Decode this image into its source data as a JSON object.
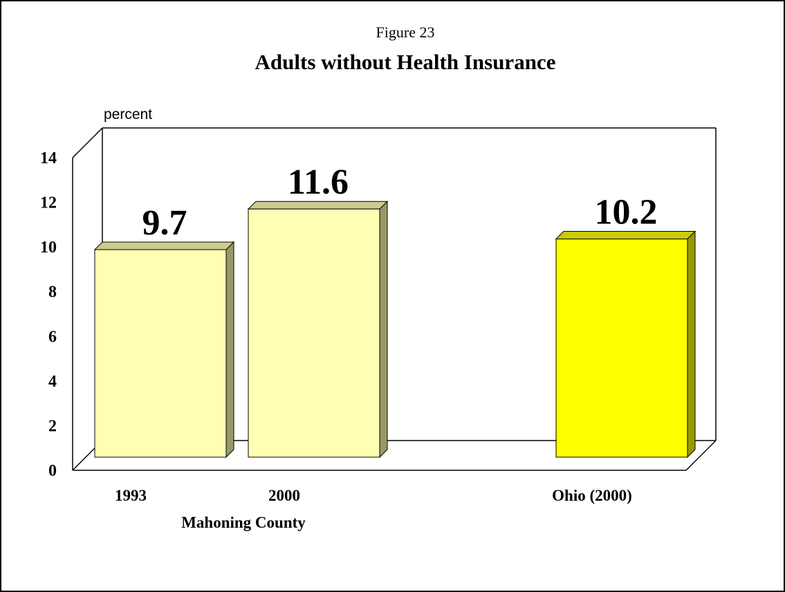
{
  "chart_data": {
    "type": "bar",
    "subtitle": "Figure 23",
    "title": "Adults without Health Insurance",
    "ylabel": "percent",
    "ylim": [
      0,
      14
    ],
    "yticks": [
      0,
      2,
      4,
      6,
      8,
      10,
      12,
      14
    ],
    "categories": [
      "1993",
      "2000",
      "Ohio (2000)"
    ],
    "values": [
      9.7,
      11.6,
      10.2
    ],
    "value_labels": [
      "9.7",
      "11.6",
      "10.2"
    ],
    "group_label": "Mahoning County",
    "grid": false,
    "three_d": true,
    "colors": {
      "bar_face": [
        "#ffffb3",
        "#ffffb3",
        "#ffff00"
      ],
      "bar_top": [
        "#cccc8f",
        "#cccc8f",
        "#cccc00"
      ],
      "bar_side": [
        "#999966",
        "#999966",
        "#999900"
      ]
    }
  }
}
